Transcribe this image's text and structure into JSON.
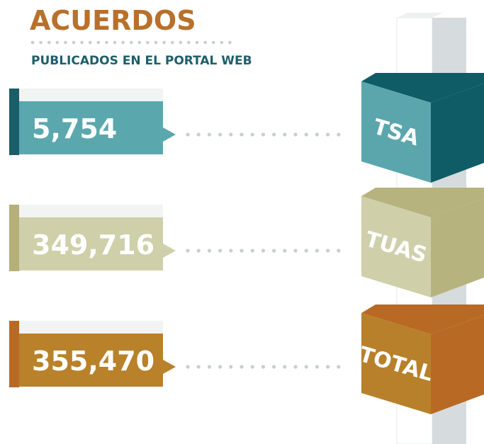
{
  "header": {
    "title": "ACUERDOS",
    "subtitle": "PUBLICADOS EN EL PORTAL WEB"
  },
  "items": [
    {
      "value": "5,754",
      "label": "TSA"
    },
    {
      "value": "349,716",
      "label": "TUAS"
    },
    {
      "value": "355,470",
      "label": "TOTAL"
    }
  ]
}
